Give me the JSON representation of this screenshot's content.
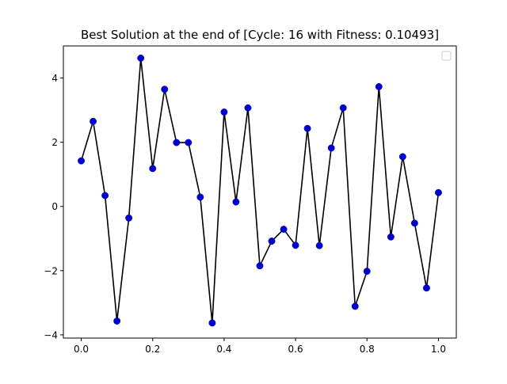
{
  "chart_data": {
    "type": "line",
    "title": "Best Solution at the end of [Cycle: 16 with Fitness: 0.10493]",
    "xlabel": "",
    "ylabel": "",
    "xlim": [
      -0.05,
      1.05
    ],
    "ylim": [
      -4.1,
      5.0
    ],
    "xticks": [
      0.0,
      0.2,
      0.4,
      0.6,
      0.8,
      1.0
    ],
    "xtick_labels": [
      "0.0",
      "0.2",
      "0.4",
      "0.6",
      "0.8",
      "1.0"
    ],
    "yticks": [
      -4,
      -2,
      0,
      2,
      4
    ],
    "ytick_labels": [
      "−4",
      "−2",
      "0",
      "2",
      "4"
    ],
    "grid": false,
    "legend": {
      "placement": "top-right",
      "entries": []
    },
    "series": [
      {
        "line_color": "#000000",
        "marker_color": "#0000cc",
        "x": [
          0.0,
          0.0333,
          0.0667,
          0.1,
          0.1333,
          0.1667,
          0.2,
          0.2333,
          0.2667,
          0.3,
          0.3333,
          0.3667,
          0.4,
          0.4333,
          0.4667,
          0.5,
          0.5333,
          0.5667,
          0.6,
          0.6333,
          0.6667,
          0.7,
          0.7333,
          0.7667,
          0.8,
          0.8333,
          0.8667,
          0.9,
          0.9333,
          0.9667,
          1.0
        ],
        "y": [
          1.42,
          2.65,
          0.34,
          -3.57,
          -0.36,
          4.62,
          1.18,
          3.65,
          1.99,
          1.99,
          0.29,
          -3.63,
          2.94,
          0.14,
          3.07,
          -1.85,
          -1.08,
          -0.71,
          -1.21,
          2.43,
          -1.22,
          1.82,
          3.07,
          -3.11,
          -2.02,
          3.73,
          -0.95,
          1.55,
          -0.52,
          -2.54,
          0.43
        ]
      }
    ]
  }
}
